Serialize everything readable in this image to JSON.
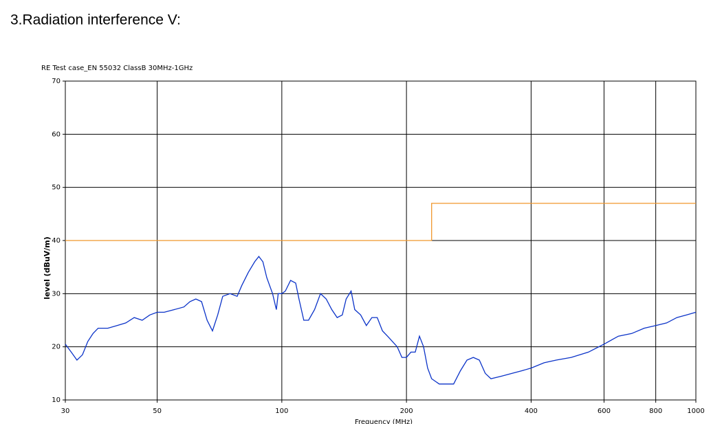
{
  "heading": "3.Radiation interference V:",
  "chart_data": {
    "type": "line",
    "title": "RE Test case_EN 55032 ClassB 30MHz-1GHz",
    "x_label": "Frequency (MHz)",
    "y_label": "level (dBuV/m)",
    "xscale": "log",
    "grid": true,
    "xlim": [
      30,
      1000
    ],
    "xticks": [
      30,
      50,
      100,
      200,
      400,
      600,
      800,
      1000
    ],
    "ylim": [
      10,
      70
    ],
    "yticks": [
      10,
      20,
      30,
      40,
      50,
      60,
      70
    ],
    "series": [
      {
        "color": "#f0962a",
        "x": [
          30,
          230,
          230,
          1000
        ],
        "values": [
          40,
          40,
          47,
          47
        ]
      },
      {
        "color": "#0a32c8",
        "x": [
          30,
          31,
          32,
          33,
          34,
          35,
          36,
          38,
          40,
          42,
          44,
          46,
          48,
          50,
          52,
          55,
          58,
          60,
          62,
          64,
          66,
          68,
          70,
          72,
          75,
          78,
          80,
          83,
          86,
          88,
          90,
          92,
          95,
          97,
          98,
          100,
          102,
          105,
          108,
          110,
          113,
          116,
          120,
          124,
          128,
          132,
          136,
          140,
          143,
          147,
          150,
          155,
          160,
          165,
          170,
          175,
          180,
          185,
          190,
          195,
          200,
          205,
          210,
          215,
          220,
          225,
          230,
          240,
          250,
          260,
          270,
          280,
          290,
          300,
          310,
          320,
          340,
          360,
          380,
          400,
          430,
          460,
          500,
          550,
          600,
          650,
          700,
          750,
          800,
          850,
          900,
          950,
          1000
        ],
        "values": [
          20.5,
          19,
          17.5,
          18.5,
          21,
          22.5,
          23.5,
          23.5,
          24,
          24.5,
          25.5,
          25,
          26,
          26.5,
          26.5,
          27,
          27.5,
          28.5,
          29,
          28.5,
          25,
          23,
          26,
          29.5,
          30,
          29.5,
          31.5,
          34,
          36,
          37,
          36,
          33,
          30,
          27,
          30,
          30,
          30.5,
          32.5,
          32,
          29,
          25,
          25,
          27,
          30,
          29,
          27,
          25.5,
          26,
          29,
          30.5,
          27,
          26,
          24,
          25.5,
          25.5,
          23,
          22,
          21,
          20,
          18,
          18,
          19,
          19,
          22,
          20,
          16,
          14,
          13,
          13,
          13,
          15.5,
          17.5,
          18,
          17.5,
          15,
          14,
          14.5,
          15,
          15.5,
          16,
          17,
          17.5,
          18,
          19,
          20.5,
          22,
          22.5,
          23.5,
          24,
          24.5,
          25.5,
          26,
          26.5
        ]
      }
    ]
  }
}
